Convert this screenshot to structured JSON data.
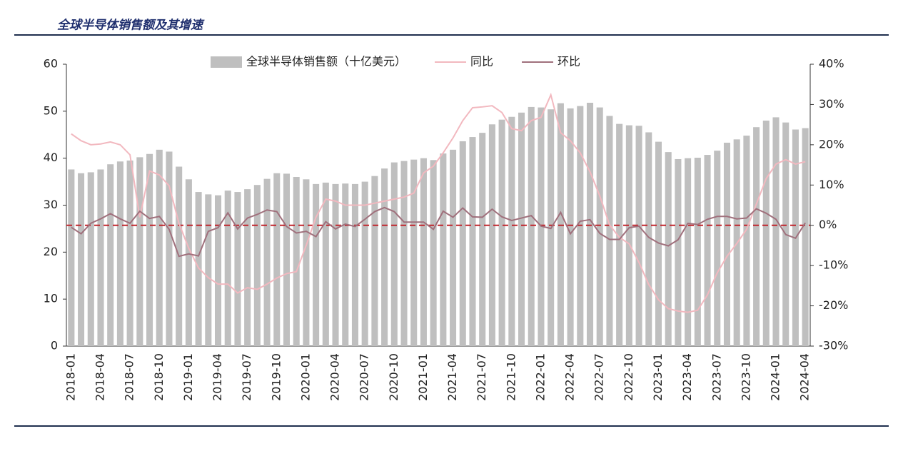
{
  "chart_data": {
    "type": "bar_line",
    "title": "全球半导体销售额及其增速",
    "categories": [
      "2018-01",
      null,
      null,
      "2018-04",
      null,
      null,
      "2018-07",
      null,
      null,
      "2018-10",
      null,
      null,
      "2019-01",
      null,
      null,
      "2019-04",
      null,
      null,
      "2019-07",
      null,
      null,
      "2019-10",
      null,
      null,
      "2020-01",
      null,
      null,
      "2020-04",
      null,
      null,
      "2020-07",
      null,
      null,
      "2020-10",
      null,
      null,
      "2021-01",
      null,
      null,
      "2021-04",
      null,
      null,
      "2021-07",
      null,
      null,
      "2021-10",
      null,
      null,
      "2022-01",
      null,
      null,
      "2022-04",
      null,
      null,
      "2022-07",
      null,
      null,
      "2022-10",
      null,
      null,
      "2023-01",
      null,
      null,
      "2023-04",
      null,
      null,
      "2023-07",
      null,
      null,
      "2023-10",
      null,
      null,
      "2024-01",
      null,
      null,
      "2024-04"
    ],
    "series": [
      {
        "name": "全球半导体销售额（十亿美元）",
        "kind": "bar",
        "color": "#bfbfbf",
        "values": [
          37.6,
          36.8,
          37.0,
          37.6,
          38.7,
          39.3,
          39.5,
          40.2,
          40.9,
          41.8,
          41.4,
          38.2,
          35.5,
          32.8,
          32.3,
          32.1,
          33.1,
          32.8,
          33.4,
          34.3,
          35.6,
          36.8,
          36.7,
          36.0,
          35.5,
          34.5,
          34.8,
          34.5,
          34.6,
          34.5,
          35.0,
          36.2,
          37.8,
          39.1,
          39.4,
          39.7,
          40.0,
          39.6,
          41.0,
          41.8,
          43.6,
          44.5,
          45.4,
          47.2,
          48.2,
          48.8,
          49.7,
          50.9,
          50.8,
          50.4,
          51.7,
          50.6,
          51.1,
          51.8,
          50.8,
          49.0,
          47.3,
          47.0,
          46.9,
          45.5,
          43.5,
          41.3,
          39.8,
          40.0,
          40.1,
          40.7,
          41.6,
          43.3,
          44.0,
          44.8,
          46.6,
          48.0,
          48.7,
          47.6,
          46.1,
          46.4
        ]
      },
      {
        "name": "同比",
        "kind": "line",
        "axis": "y2",
        "color": "#f2b8bf",
        "values": [
          22.7,
          21.0,
          20.0,
          20.2,
          20.7,
          20.0,
          17.5,
          2.0,
          13.5,
          12.5,
          9.8,
          0.5,
          -5.7,
          -10.6,
          -13.0,
          -14.6,
          -14.6,
          -16.8,
          -15.5,
          -15.9,
          -14.6,
          -13.1,
          -12.0,
          -11.5,
          -5.0,
          2.0,
          6.5,
          6.0,
          5.0,
          5.0,
          5.0,
          5.5,
          6.0,
          6.5,
          7.0,
          8.0,
          13.0,
          14.7,
          18.0,
          21.7,
          26.0,
          29.2,
          29.4,
          29.7,
          28.0,
          24.0,
          23.5,
          26.0,
          26.8,
          32.4,
          23.0,
          21.0,
          18.0,
          13.3,
          7.3,
          0.1,
          -3.0,
          -4.6,
          -9.2,
          -14.7,
          -18.5,
          -20.7,
          -21.3,
          -21.6,
          -21.1,
          -17.3,
          -11.8,
          -7.7,
          -4.5,
          -1.0,
          5.3,
          11.6,
          15.2,
          16.3,
          15.2,
          15.8
        ]
      },
      {
        "name": "环比",
        "kind": "line",
        "axis": "y2",
        "color": "#a0707c",
        "values": [
          -0.5,
          -2.1,
          0.5,
          1.6,
          2.9,
          1.6,
          0.5,
          3.5,
          1.7,
          2.2,
          -1.0,
          -7.7,
          -7.1,
          -7.6,
          -1.5,
          -0.6,
          3.1,
          -0.9,
          1.8,
          2.7,
          3.8,
          3.4,
          -0.3,
          -1.9,
          -1.5,
          -2.8,
          0.9,
          -0.9,
          0.3,
          -0.3,
          1.5,
          3.4,
          4.4,
          3.4,
          0.8,
          0.8,
          0.8,
          -1.0,
          3.5,
          2.0,
          4.3,
          2.1,
          2.0,
          4.0,
          2.1,
          1.2,
          1.8,
          2.4,
          -0.2,
          -0.8,
          3.2,
          -2.1,
          1.0,
          1.4,
          -2.0,
          -3.5,
          -3.5,
          -0.6,
          -0.2,
          -3.0,
          -4.4,
          -5.1,
          -3.6,
          0.5,
          0.2,
          1.5,
          2.2,
          2.2,
          1.6,
          1.8,
          4.1,
          3.0,
          1.5,
          -2.3,
          -3.2,
          0.6
        ]
      }
    ],
    "ylim": [
      0,
      60
    ],
    "yticks": [
      0,
      10,
      20,
      30,
      40,
      50,
      60
    ],
    "y2lim": [
      -30,
      40
    ],
    "y2ticks": [
      {
        "value": -30,
        "label": "-30%"
      },
      {
        "value": -20,
        "label": "-20%"
      },
      {
        "value": -10,
        "label": "-10%"
      },
      {
        "value": 0,
        "label": "0%"
      },
      {
        "value": 10,
        "label": "10%"
      },
      {
        "value": 20,
        "label": "20%"
      },
      {
        "value": 30,
        "label": "30%"
      },
      {
        "value": 40,
        "label": "40%"
      }
    ],
    "zero_line_color": "#c0262d",
    "legend": "top"
  }
}
